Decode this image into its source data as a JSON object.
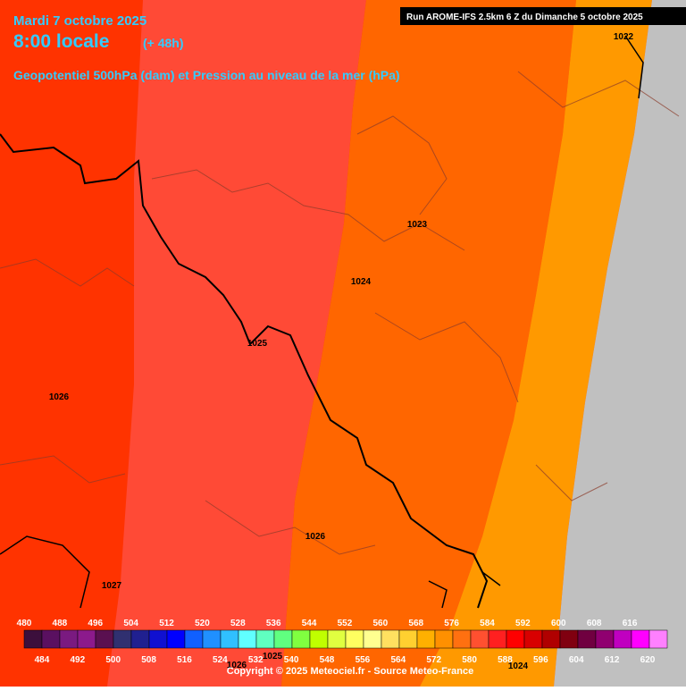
{
  "header": {
    "date": "Mardi 7 octobre 2025",
    "time": "8:00 locale",
    "lead": "(+ 48h)",
    "subtitle": "Geopotentiel 500hPa (dam) et Pression au niveau de la mer (hPa)",
    "run": "Run AROME-IFS 2.5km 6 Z du Dimanche 5 octobre 2025"
  },
  "pressure_labels": [
    "1022",
    "1023",
    "1024",
    "1025",
    "1026",
    "1026",
    "1027",
    "1026",
    "1025",
    "1024"
  ],
  "color_scale": {
    "labels": [
      480,
      484,
      488,
      492,
      496,
      500,
      504,
      508,
      512,
      516,
      520,
      524,
      528,
      532,
      536,
      540,
      544,
      548,
      552,
      556,
      560,
      564,
      568,
      572,
      576,
      580,
      584,
      588,
      592,
      596,
      600,
      604,
      608,
      612,
      616,
      620
    ],
    "colors": [
      "#3c0f3c",
      "#5a1060",
      "#7a1a80",
      "#8c1a8c",
      "#5a1050",
      "#303070",
      "#202090",
      "#1010d0",
      "#0000ff",
      "#1060ff",
      "#2090ff",
      "#30c0ff",
      "#60ffff",
      "#60ffc0",
      "#60ff80",
      "#80ff40",
      "#c0ff00",
      "#e0ff40",
      "#ffff60",
      "#ffff90",
      "#ffe060",
      "#ffd030",
      "#ffb000",
      "#ff9000",
      "#ff7010",
      "#ff5030",
      "#ff2020",
      "#ff0000",
      "#d80000",
      "#b00000",
      "#800010",
      "#700040",
      "#900070",
      "#c000c0",
      "#ff00ff",
      "#ff80ff"
    ]
  },
  "footer": {
    "copyright": "Copyright © 2025 Meteociel.fr - Source Meteo-France"
  }
}
